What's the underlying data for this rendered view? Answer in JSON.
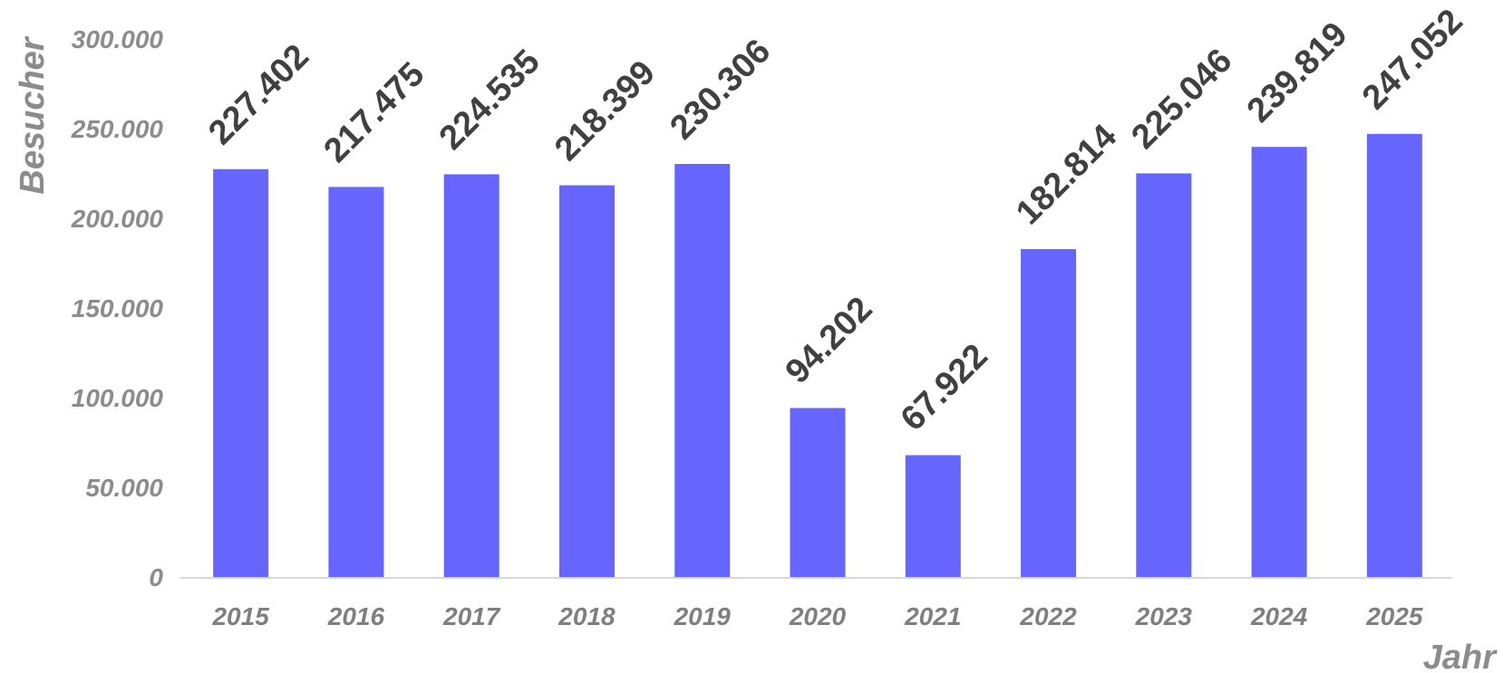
{
  "chart_data": {
    "type": "bar",
    "title": "",
    "xlabel": "Jahr",
    "ylabel": "Besucher",
    "categories": [
      "2015",
      "2016",
      "2017",
      "2018",
      "2019",
      "2020",
      "2021",
      "2022",
      "2023",
      "2024",
      "2025"
    ],
    "values": [
      227402,
      217475,
      224535,
      218399,
      230306,
      94202,
      67922,
      182814,
      225046,
      239819,
      247052
    ],
    "value_labels": [
      "227.402",
      "217.475",
      "224.535",
      "218.399",
      "230.306",
      "94.202",
      "67.922",
      "182.814",
      "225.046",
      "239.819",
      "247.052"
    ],
    "y_ticks": [
      0,
      50000,
      100000,
      150000,
      200000,
      250000,
      300000
    ],
    "y_tick_labels": [
      "0",
      "50.000",
      "100.000",
      "150.000",
      "200.000",
      "250.000",
      "300.000"
    ],
    "ylim": [
      0,
      300000
    ],
    "grid": false,
    "legend": "none",
    "bar_color": "#6666ff",
    "axis_line_color": "#d9d9d9"
  }
}
